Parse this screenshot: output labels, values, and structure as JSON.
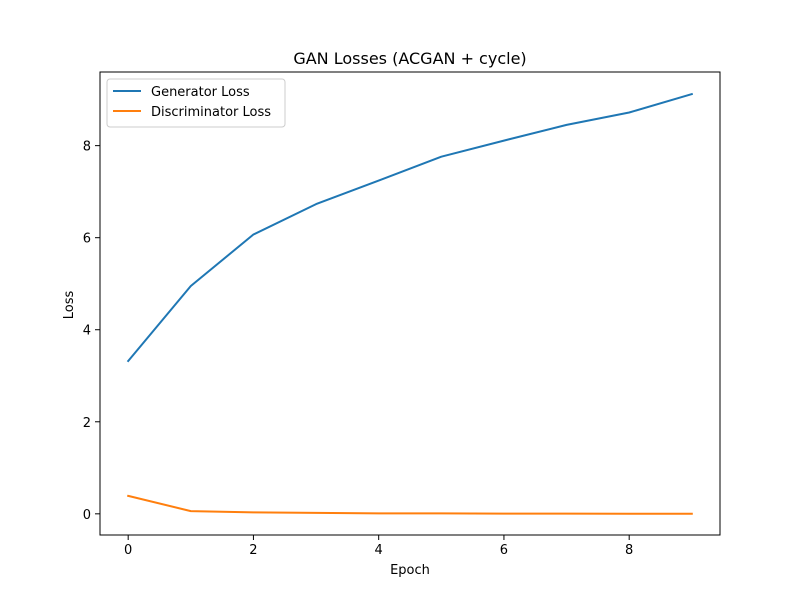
{
  "chart_data": {
    "type": "line",
    "title": "GAN Losses (ACGAN + cycle)",
    "xlabel": "Epoch",
    "ylabel": "Loss",
    "x": [
      0,
      1,
      2,
      3,
      4,
      5,
      6,
      7,
      8,
      9
    ],
    "xlim": [
      -0.45,
      9.45
    ],
    "ylim": [
      -0.46,
      9.6
    ],
    "xticks": [
      0,
      2,
      4,
      6,
      8
    ],
    "yticks": [
      0,
      2,
      4,
      6,
      8
    ],
    "grid": false,
    "legend_position": "upper-left",
    "series": [
      {
        "name": "Generator Loss",
        "color": "#1f77b4",
        "values": [
          3.32,
          4.95,
          6.07,
          6.73,
          7.24,
          7.76,
          8.11,
          8.45,
          8.72,
          9.12
        ]
      },
      {
        "name": "Discriminator Loss",
        "color": "#ff7f0e",
        "values": [
          0.39,
          0.06,
          0.03,
          0.02,
          0.01,
          0.01,
          0.005,
          0.004,
          0.003,
          0.002
        ]
      }
    ]
  }
}
